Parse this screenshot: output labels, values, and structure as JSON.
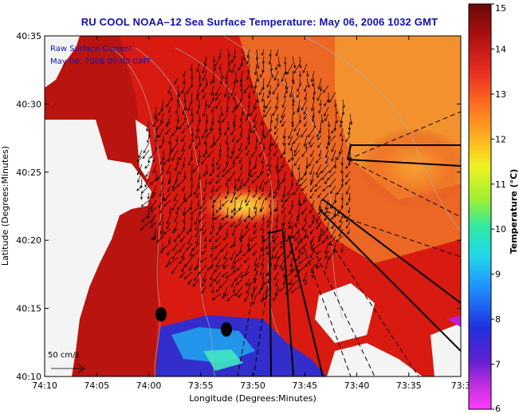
{
  "title": "RU COOL  NOAA–12  Sea Surface Temperature:  May 06, 2006 1032 GMT",
  "overlay": {
    "line1": "Raw Surface Current",
    "line2": "May 06, 2006 09:00 GMT",
    "scale_label": "50 cm/s"
  },
  "axes": {
    "xlabel": "Longitude (Degrees:Minutes)",
    "ylabel": "Latitude (Degrees:Minutes)",
    "xticks": [
      "74:10",
      "74:05",
      "74:00",
      "73:55",
      "73:50",
      "73:45",
      "73:40",
      "73:35",
      "73:3"
    ],
    "yticks": [
      "40:35",
      "40:30",
      "40:25",
      "40:20",
      "40:15",
      "40:10"
    ]
  },
  "colorbar": {
    "label": "Temperature (°C)",
    "min": 6,
    "max": 15,
    "ticks": [
      "15",
      "14",
      "13",
      "12",
      "11",
      "10",
      "9",
      "8",
      "7",
      "6"
    ],
    "colors": [
      "#ff3cff",
      "#8a20c0",
      "#2030e0",
      "#2088ff",
      "#20d8e8",
      "#30e8a0",
      "#a0f030",
      "#f0f020",
      "#ffb020",
      "#ff7020",
      "#e83020",
      "#b01010",
      "#6a0808"
    ]
  },
  "colors": {
    "land": "#f4f4f4",
    "warm_water": "#d81a10",
    "title": "#1010b0"
  }
}
